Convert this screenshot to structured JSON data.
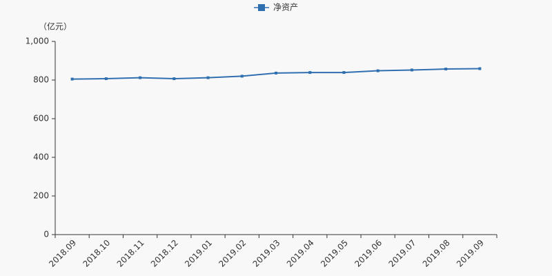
{
  "chart_data": {
    "type": "line",
    "unit_label": "（亿元）",
    "categories": [
      "2018.09",
      "2018.10",
      "2018.11",
      "2018.12",
      "2019.01",
      "2019.02",
      "2019.03",
      "2019.04",
      "2019.05",
      "2019.06",
      "2019.07",
      "2019.08",
      "2019.09"
    ],
    "series": [
      {
        "name": "净资产",
        "color": "#2f6fb0",
        "values": [
          805,
          807,
          812,
          807,
          812,
          820,
          836,
          839,
          839,
          848,
          852,
          857,
          859
        ]
      }
    ],
    "ylim": [
      0,
      1000
    ],
    "yticks": [
      0,
      200,
      400,
      600,
      800,
      {
        "value": 1000,
        "label": "1,000"
      }
    ],
    "grid": false,
    "legend": "top"
  }
}
